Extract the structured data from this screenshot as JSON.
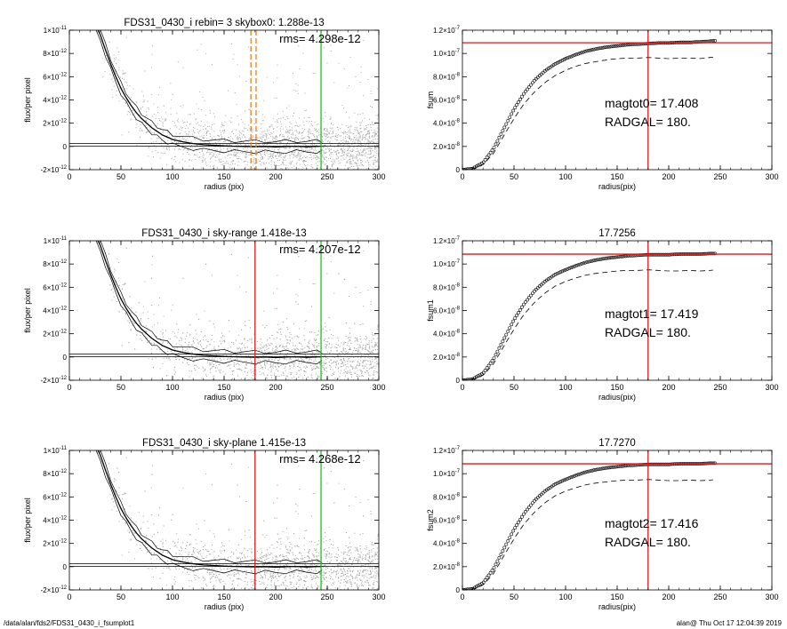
{
  "colors": {
    "red": "#e4161b",
    "green": "#18c418",
    "orange": "#f07d17",
    "scatter": "#a6a6a6",
    "frame": "#000000"
  },
  "footer": {
    "left": "/data/alan/fds2/FDS31_0430_i_fsumplot1",
    "right": "alan@  Thu Oct 17 12:04:39 2019"
  },
  "chart_data": [
    {
      "type": "scatter",
      "title": "FDS31_0430_i rebin= 3    skybox0:  1.288e-13",
      "annotation": "rms= 4.298e-12",
      "xlabel": "radius (pix)",
      "ylabel": "flux/per pixel",
      "xlim": [
        0,
        300
      ],
      "ylim": [
        -2e-12,
        1e-11
      ],
      "xticks": [
        "0",
        "50",
        "100",
        "150",
        "200",
        "250",
        "300"
      ],
      "yticks": [
        {
          "v": 1e-11,
          "m": "1×10",
          "e": "-11"
        },
        {
          "v": 8e-12,
          "m": "8×10",
          "e": "-12"
        },
        {
          "v": 6e-12,
          "m": "6×10",
          "e": "-12"
        },
        {
          "v": 4e-12,
          "m": "4×10",
          "e": "-12"
        },
        {
          "v": 2e-12,
          "m": "2×10",
          "e": "-12"
        },
        {
          "v": 0,
          "m": "0",
          "e": ""
        },
        {
          "v": -2e-12,
          "m": "-2×10",
          "e": "-12"
        }
      ],
      "profile_r": [
        25,
        30,
        35,
        40,
        45,
        50,
        55,
        60,
        65,
        70,
        75,
        80,
        85,
        90,
        95,
        100,
        110,
        120,
        130,
        140,
        150,
        160,
        170,
        180,
        190,
        200,
        210,
        220,
        230,
        240,
        245
      ],
      "profile_flux": [
        1.05e-11,
        9.6e-12,
        8.3e-12,
        7.1e-12,
        6e-12,
        5e-12,
        4.2e-12,
        3.5e-12,
        2.9e-12,
        2.4e-12,
        2e-12,
        1.6e-12,
        1.3e-12,
        1e-12,
        8e-13,
        6e-13,
        4e-13,
        2.5e-13,
        1.5e-13,
        1e-13,
        5e-14,
        2e-14,
        0,
        -2e-14,
        0,
        -5e-14,
        0,
        2e-14,
        -3e-14,
        1e-14,
        2e-14
      ],
      "sky_level": 1.288e-13,
      "vlines": [
        {
          "x": 176,
          "color": "orange",
          "style": "dashed"
        },
        {
          "x": 181,
          "color": "orange",
          "style": "dashed"
        },
        {
          "x": 244,
          "color": "green",
          "style": "solid"
        }
      ],
      "grid": false
    },
    {
      "type": "line",
      "title": "",
      "xlabel": "radius(pix)",
      "ylabel": "fsum",
      "xlim": [
        0,
        300
      ],
      "ylim": [
        0,
        1.2e-07
      ],
      "xticks": [
        "0",
        "50",
        "100",
        "150",
        "200",
        "250",
        "300"
      ],
      "yticks": [
        {
          "v": 1.2e-07,
          "m": "1.2×10",
          "e": "-7"
        },
        {
          "v": 1e-07,
          "m": "1.0×10",
          "e": "-7"
        },
        {
          "v": 8e-08,
          "m": "8.0×10",
          "e": "-8"
        },
        {
          "v": 6e-08,
          "m": "6.0×10",
          "e": "-8"
        },
        {
          "v": 4e-08,
          "m": "4.0×10",
          "e": "-8"
        },
        {
          "v": 2e-08,
          "m": "2.0×10",
          "e": "-8"
        },
        {
          "v": 0,
          "m": "0",
          "e": ""
        }
      ],
      "annotations": [
        "magtot0=  17.408",
        "RADGAL=    180."
      ],
      "series": [
        {
          "style": "circles",
          "x": [
            0,
            10,
            20,
            30,
            40,
            50,
            60,
            70,
            80,
            90,
            100,
            110,
            120,
            130,
            140,
            150,
            160,
            170,
            180,
            190,
            200,
            210,
            220,
            230,
            240,
            245
          ],
          "y": [
            0,
            1e-09,
            6e-09,
            1.8e-08,
            3.5e-08,
            5.2e-08,
            6.6e-08,
            7.7e-08,
            8.5e-08,
            9.1e-08,
            9.55e-08,
            9.9e-08,
            1.02e-07,
            1.04e-07,
            1.055e-07,
            1.065e-07,
            1.075e-07,
            1.08e-07,
            1.085e-07,
            1.09e-07,
            1.09e-07,
            1.095e-07,
            1.095e-07,
            1.1e-07,
            1.105e-07,
            1.11e-07
          ]
        },
        {
          "style": "dashed",
          "x": [
            0,
            10,
            20,
            30,
            40,
            50,
            60,
            70,
            80,
            90,
            100,
            110,
            120,
            130,
            140,
            150,
            160,
            170,
            180,
            190,
            200,
            210,
            220,
            230,
            240,
            245
          ],
          "y": [
            0,
            5e-10,
            4e-09,
            1.4e-08,
            2.9e-08,
            4.4e-08,
            5.7e-08,
            6.7e-08,
            7.5e-08,
            8.1e-08,
            8.55e-08,
            8.9e-08,
            9.15e-08,
            9.3e-08,
            9.45e-08,
            9.55e-08,
            9.6e-08,
            9.6e-08,
            9.65e-08,
            9.6e-08,
            9.55e-08,
            9.6e-08,
            9.6e-08,
            9.55e-08,
            9.65e-08,
            9.7e-08
          ]
        }
      ],
      "hline": {
        "y": 1.092e-07,
        "color": "red"
      },
      "vline": {
        "x": 180,
        "color": "red"
      },
      "grid": false
    },
    {
      "type": "scatter",
      "title": "FDS31_0430_i sky-range  1.418e-13",
      "annotation": "rms= 4.207e-12",
      "xlabel": "radius (pix)",
      "ylabel": "flux/per pixel",
      "xlim": [
        0,
        300
      ],
      "ylim": [
        -2e-12,
        1e-11
      ],
      "xticks": [
        "0",
        "50",
        "100",
        "150",
        "200",
        "250",
        "300"
      ],
      "yticks": [
        {
          "v": 1e-11,
          "m": "1×10",
          "e": "-11"
        },
        {
          "v": 8e-12,
          "m": "8×10",
          "e": "-12"
        },
        {
          "v": 6e-12,
          "m": "6×10",
          "e": "-12"
        },
        {
          "v": 4e-12,
          "m": "4×10",
          "e": "-12"
        },
        {
          "v": 2e-12,
          "m": "2×10",
          "e": "-12"
        },
        {
          "v": 0,
          "m": "0",
          "e": ""
        },
        {
          "v": -2e-12,
          "m": "-2×10",
          "e": "-12"
        }
      ],
      "profile_r": [
        25,
        30,
        35,
        40,
        45,
        50,
        55,
        60,
        65,
        70,
        75,
        80,
        85,
        90,
        95,
        100,
        110,
        120,
        130,
        140,
        150,
        160,
        170,
        180,
        190,
        200,
        210,
        220,
        230,
        240,
        245
      ],
      "profile_flux": [
        1.05e-11,
        9.6e-12,
        8.3e-12,
        7.1e-12,
        6e-12,
        5e-12,
        4.2e-12,
        3.5e-12,
        2.9e-12,
        2.4e-12,
        2e-12,
        1.6e-12,
        1.3e-12,
        1e-12,
        8e-13,
        6e-13,
        4e-13,
        2.5e-13,
        1.5e-13,
        1e-13,
        5e-14,
        2e-14,
        0,
        -2e-14,
        0,
        -5e-14,
        0,
        2e-14,
        -3e-14,
        1e-14,
        2e-14
      ],
      "sky_level": 1.418e-13,
      "vlines": [
        {
          "x": 180,
          "color": "red",
          "style": "solid"
        },
        {
          "x": 244,
          "color": "green",
          "style": "solid"
        }
      ],
      "grid": false
    },
    {
      "type": "line",
      "title": "17.7256",
      "xlabel": "radius(pix)",
      "ylabel": "fsum1",
      "xlim": [
        0,
        300
      ],
      "ylim": [
        0,
        1.2e-07
      ],
      "xticks": [
        "0",
        "50",
        "100",
        "150",
        "200",
        "250",
        "300"
      ],
      "yticks": [
        {
          "v": 1.2e-07,
          "m": "1.2×10",
          "e": "-7"
        },
        {
          "v": 1e-07,
          "m": "1.0×10",
          "e": "-7"
        },
        {
          "v": 8e-08,
          "m": "8.0×10",
          "e": "-8"
        },
        {
          "v": 6e-08,
          "m": "6.0×10",
          "e": "-8"
        },
        {
          "v": 4e-08,
          "m": "4.0×10",
          "e": "-8"
        },
        {
          "v": 2e-08,
          "m": "2.0×10",
          "e": "-8"
        },
        {
          "v": 0,
          "m": "0",
          "e": ""
        }
      ],
      "annotations": [
        "magtot1=  17.419",
        "RADGAL=    180."
      ],
      "series": [
        {
          "style": "circles",
          "x": [
            0,
            10,
            20,
            30,
            40,
            50,
            60,
            70,
            80,
            90,
            100,
            110,
            120,
            130,
            140,
            150,
            160,
            170,
            180,
            190,
            200,
            210,
            220,
            230,
            240,
            245
          ],
          "y": [
            0,
            1e-09,
            6e-09,
            1.8e-08,
            3.5e-08,
            5.2e-08,
            6.6e-08,
            7.7e-08,
            8.5e-08,
            9.1e-08,
            9.5e-08,
            9.85e-08,
            1.015e-07,
            1.035e-07,
            1.05e-07,
            1.06e-07,
            1.07e-07,
            1.075e-07,
            1.08e-07,
            1.08e-07,
            1.08e-07,
            1.085e-07,
            1.085e-07,
            1.085e-07,
            1.09e-07,
            1.09e-07
          ]
        },
        {
          "style": "dashed",
          "x": [
            0,
            10,
            20,
            30,
            40,
            50,
            60,
            70,
            80,
            90,
            100,
            110,
            120,
            130,
            140,
            150,
            160,
            170,
            180,
            190,
            200,
            210,
            220,
            230,
            240,
            245
          ],
          "y": [
            0,
            5e-10,
            4e-09,
            1.4e-08,
            2.9e-08,
            4.4e-08,
            5.7e-08,
            6.7e-08,
            7.5e-08,
            8.1e-08,
            8.5e-08,
            8.8e-08,
            9.05e-08,
            9.2e-08,
            9.3e-08,
            9.4e-08,
            9.45e-08,
            9.45e-08,
            9.5e-08,
            9.45e-08,
            9.4e-08,
            9.4e-08,
            9.45e-08,
            9.4e-08,
            9.45e-08,
            9.5e-08
          ]
        }
      ],
      "hline": {
        "y": 1.085e-07,
        "color": "red"
      },
      "vline": {
        "x": 180,
        "color": "red"
      },
      "grid": false
    },
    {
      "type": "scatter",
      "title": "FDS31_0430_i sky-plane  1.415e-13",
      "annotation": "rms= 4.268e-12",
      "xlabel": "radius (pix)",
      "ylabel": "flux/per pixel",
      "xlim": [
        0,
        300
      ],
      "ylim": [
        -2e-12,
        1e-11
      ],
      "xticks": [
        "0",
        "50",
        "100",
        "150",
        "200",
        "250",
        "300"
      ],
      "yticks": [
        {
          "v": 1e-11,
          "m": "1×10",
          "e": "-11"
        },
        {
          "v": 8e-12,
          "m": "8×10",
          "e": "-12"
        },
        {
          "v": 6e-12,
          "m": "6×10",
          "e": "-12"
        },
        {
          "v": 4e-12,
          "m": "4×10",
          "e": "-12"
        },
        {
          "v": 2e-12,
          "m": "2×10",
          "e": "-12"
        },
        {
          "v": 0,
          "m": "0",
          "e": ""
        },
        {
          "v": -2e-12,
          "m": "-2×10",
          "e": "-12"
        }
      ],
      "profile_r": [
        25,
        30,
        35,
        40,
        45,
        50,
        55,
        60,
        65,
        70,
        75,
        80,
        85,
        90,
        95,
        100,
        110,
        120,
        130,
        140,
        150,
        160,
        170,
        180,
        190,
        200,
        210,
        220,
        230,
        240,
        245
      ],
      "profile_flux": [
        1.05e-11,
        9.6e-12,
        8.3e-12,
        7.1e-12,
        6e-12,
        5e-12,
        4.2e-12,
        3.5e-12,
        2.9e-12,
        2.4e-12,
        2e-12,
        1.6e-12,
        1.3e-12,
        1e-12,
        8e-13,
        6e-13,
        4e-13,
        2.5e-13,
        1.5e-13,
        1e-13,
        5e-14,
        2e-14,
        0,
        -2e-14,
        0,
        -5e-14,
        0,
        2e-14,
        -3e-14,
        1e-14,
        2e-14
      ],
      "sky_level": 1.415e-13,
      "vlines": [
        {
          "x": 180,
          "color": "red",
          "style": "solid"
        },
        {
          "x": 244,
          "color": "green",
          "style": "solid"
        }
      ],
      "grid": false
    },
    {
      "type": "line",
      "title": "17.7270",
      "xlabel": "radius(pix)",
      "ylabel": "fsum2",
      "xlim": [
        0,
        300
      ],
      "ylim": [
        0,
        1.2e-07
      ],
      "xticks": [
        "0",
        "50",
        "100",
        "150",
        "200",
        "250",
        "300"
      ],
      "yticks": [
        {
          "v": 1.2e-07,
          "m": "1.2×10",
          "e": "-7"
        },
        {
          "v": 1e-07,
          "m": "1.0×10",
          "e": "-7"
        },
        {
          "v": 8e-08,
          "m": "8.0×10",
          "e": "-8"
        },
        {
          "v": 6e-08,
          "m": "6.0×10",
          "e": "-8"
        },
        {
          "v": 4e-08,
          "m": "4.0×10",
          "e": "-8"
        },
        {
          "v": 2e-08,
          "m": "2.0×10",
          "e": "-8"
        },
        {
          "v": 0,
          "m": "0",
          "e": ""
        }
      ],
      "annotations": [
        "magtot2=  17.416",
        "RADGAL=    180."
      ],
      "series": [
        {
          "style": "circles",
          "x": [
            0,
            10,
            20,
            30,
            40,
            50,
            60,
            70,
            80,
            90,
            100,
            110,
            120,
            130,
            140,
            150,
            160,
            170,
            180,
            190,
            200,
            210,
            220,
            230,
            240,
            245
          ],
          "y": [
            0,
            1e-09,
            6e-09,
            1.8e-08,
            3.5e-08,
            5.2e-08,
            6.6e-08,
            7.7e-08,
            8.5e-08,
            9.1e-08,
            9.5e-08,
            9.85e-08,
            1.015e-07,
            1.035e-07,
            1.05e-07,
            1.06e-07,
            1.07e-07,
            1.075e-07,
            1.08e-07,
            1.08e-07,
            1.08e-07,
            1.085e-07,
            1.085e-07,
            1.085e-07,
            1.09e-07,
            1.09e-07
          ]
        },
        {
          "style": "dashed",
          "x": [
            0,
            10,
            20,
            30,
            40,
            50,
            60,
            70,
            80,
            90,
            100,
            110,
            120,
            130,
            140,
            150,
            160,
            170,
            180,
            190,
            200,
            210,
            220,
            230,
            240,
            245
          ],
          "y": [
            0,
            5e-10,
            4e-09,
            1.4e-08,
            2.9e-08,
            4.4e-08,
            5.7e-08,
            6.7e-08,
            7.5e-08,
            8.1e-08,
            8.5e-08,
            8.8e-08,
            9.05e-08,
            9.2e-08,
            9.3e-08,
            9.4e-08,
            9.45e-08,
            9.45e-08,
            9.5e-08,
            9.45e-08,
            9.4e-08,
            9.4e-08,
            9.45e-08,
            9.4e-08,
            9.45e-08,
            9.5e-08
          ]
        }
      ],
      "hline": {
        "y": 1.085e-07,
        "color": "red"
      },
      "vline": {
        "x": 180,
        "color": "red"
      },
      "grid": false
    }
  ]
}
